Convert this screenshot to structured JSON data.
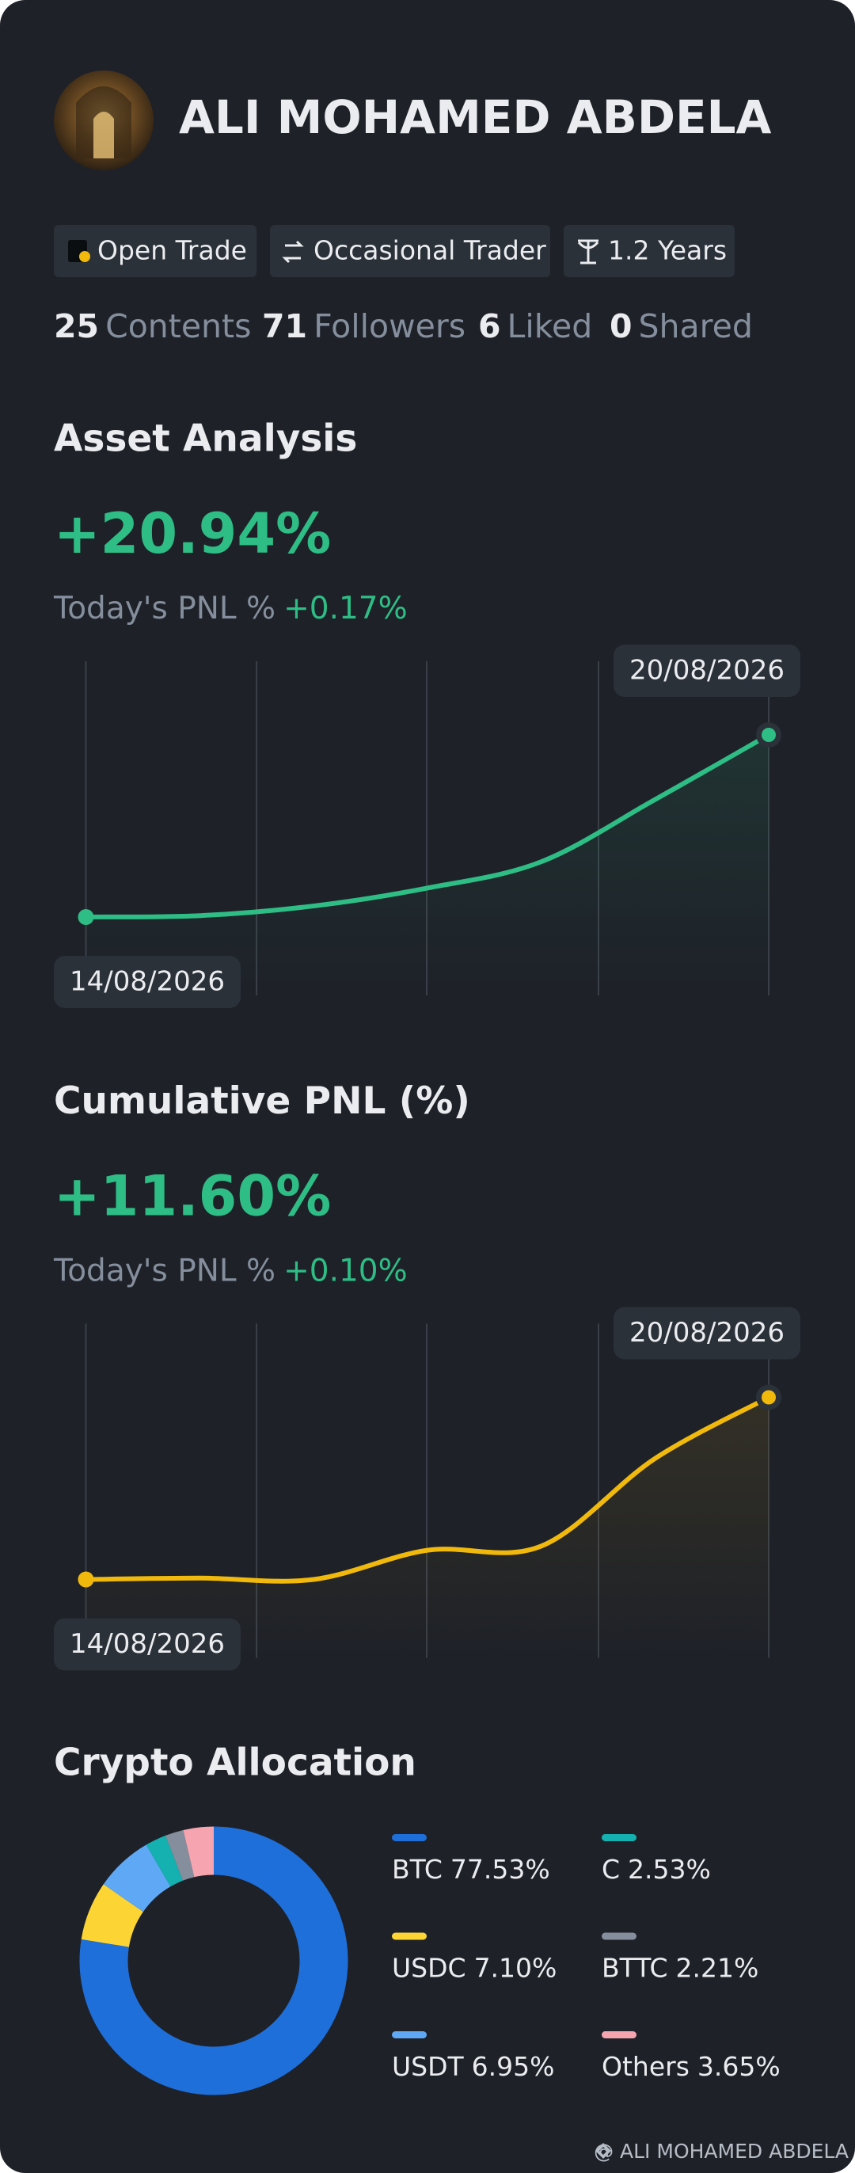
{
  "profile": {
    "name": "ALI MOHAMED ABDELA",
    "badges": [
      "Open Trade",
      "Occasional Trader",
      "1.2 Years"
    ],
    "stats": [
      {
        "count": 25,
        "label": "Contents"
      },
      {
        "count": 71,
        "label": "Followers"
      },
      {
        "count": 6,
        "label": "Liked"
      },
      {
        "count": 0,
        "label": "Shared"
      }
    ]
  },
  "sections": [
    {
      "title": "Asset Analysis",
      "headline": "+20.94%",
      "pnl_label": "Today's PNL %",
      "pnl_value": "+0.17%",
      "chart": {
        "type": "line",
        "color": "#2ebd85",
        "x": [
          "14/08/2026",
          null,
          null,
          null,
          null,
          null,
          "20/08/2026"
        ],
        "values": [
          0,
          0.16,
          1.27,
          3.33,
          6.35,
          13.5,
          20.94
        ]
      }
    },
    {
      "title": "Cumulative PNL (%)",
      "headline": "+11.60%",
      "pnl_label": "Today's PNL %",
      "pnl_value": "+0.10%",
      "chart": {
        "type": "line",
        "color": "#f0b90b",
        "x": [
          "14/08/2026",
          null,
          null,
          null,
          null,
          null,
          "20/08/2026"
        ],
        "values": [
          0,
          0.09,
          0,
          1.86,
          2.12,
          7.7,
          11.6
        ]
      }
    }
  ],
  "allocation": {
    "title": "Crypto Allocation",
    "chart": {
      "type": "donut",
      "categories": [
        "BTC",
        "USDC",
        "USDT",
        "C",
        "BTTC",
        "Others"
      ],
      "values": [
        77.53,
        7.1,
        6.95,
        2.53,
        2.21,
        3.65
      ],
      "value_labels": [
        "77.53%",
        "7.10%",
        "6.95%",
        "2.53%",
        "2.21%",
        "3.65%"
      ],
      "colors": [
        "#1e6fd9",
        "#fcd535",
        "#5fa8f5",
        "#14b1b0",
        "#848e9c",
        "#f6a5b0"
      ]
    }
  },
  "footer": "@ ALI MOHAMED ABDELA"
}
